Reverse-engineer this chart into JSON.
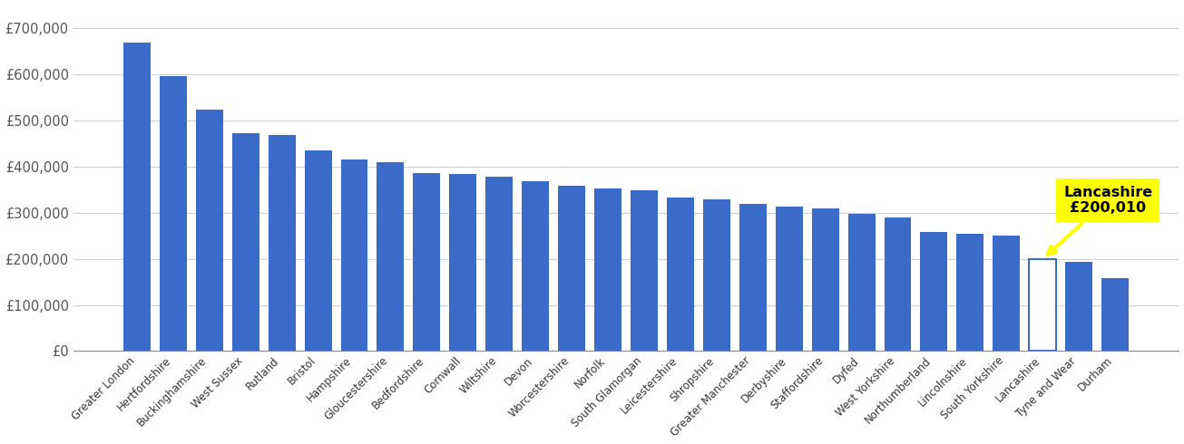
{
  "categories": [
    "Greater London",
    "Hertfordshire",
    "Buckinghamshire",
    "West Sussex",
    "Rutland",
    "Bristol",
    "Hampshire",
    "Gloucestershire",
    "Bedfordshire",
    "Cornwall",
    "Wiltshire",
    "Devon",
    "Worcestershire",
    "Norfolk",
    "South Glamorgan",
    "Leicestershire",
    "Shropshire",
    "Greater Manchester",
    "Derbyshire",
    "Staffordshire",
    "Dyfed",
    "West Yorkshire",
    "Northumberland",
    "Lincolnshire",
    "South Yorkshire",
    "Lancashire",
    "Tyne and Wear",
    "Durham"
  ],
  "values": [
    668000,
    595000,
    523000,
    472000,
    468000,
    435000,
    415000,
    410000,
    385000,
    383000,
    378000,
    368000,
    358000,
    352000,
    348000,
    333000,
    328000,
    320000,
    313000,
    310000,
    297000,
    290000,
    258000,
    255000,
    250000,
    200010,
    193000,
    158000
  ],
  "highlight_index": 25,
  "highlight_label": "Lancashire\n£200,010",
  "bar_color": "#3a6bc9",
  "highlight_bar_color": "white",
  "highlight_edge_color": "#3a6bc9",
  "annotation_bg": "yellow",
  "ylim": [
    0,
    750000
  ],
  "yticks": [
    0,
    100000,
    200000,
    300000,
    400000,
    500000,
    600000,
    700000
  ],
  "ytick_labels": [
    "£0",
    "£100,000",
    "£200,000",
    "£300,000",
    "£400,000",
    "£500,000",
    "£600,000",
    "£700,000"
  ],
  "background_color": "#ffffff",
  "grid_color": "#d0d0d0"
}
